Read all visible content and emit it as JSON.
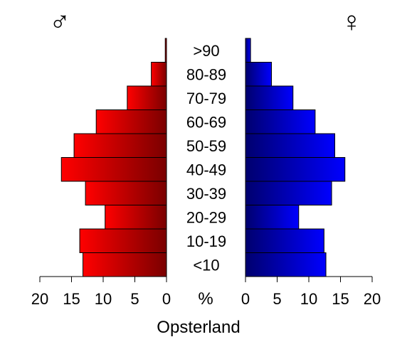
{
  "chart_data": {
    "type": "bar",
    "orientation": "horizontal",
    "layout": "population-pyramid",
    "title": "Opsterland",
    "categories": [
      "<10",
      "10-19",
      "20-29",
      "30-39",
      "40-49",
      "50-59",
      "60-69",
      "70-79",
      "80-89",
      ">90"
    ],
    "series": [
      {
        "name": "♂",
        "side": "left",
        "color": "#ff0000",
        "values": [
          13.2,
          13.7,
          9.7,
          12.8,
          16.6,
          14.6,
          11.1,
          6.2,
          2.4,
          0.2
        ]
      },
      {
        "name": "♀",
        "side": "right",
        "color": "#0000ff",
        "values": [
          12.7,
          12.4,
          8.4,
          13.6,
          15.7,
          14.1,
          11.0,
          7.5,
          4.1,
          0.8
        ]
      }
    ],
    "xlabel": "%",
    "xlim": [
      0,
      20
    ],
    "ticks": [
      20,
      15,
      10,
      5,
      0
    ],
    "ticks_right": [
      0,
      5,
      10,
      15,
      20
    ],
    "grid": false,
    "legend": "none"
  }
}
